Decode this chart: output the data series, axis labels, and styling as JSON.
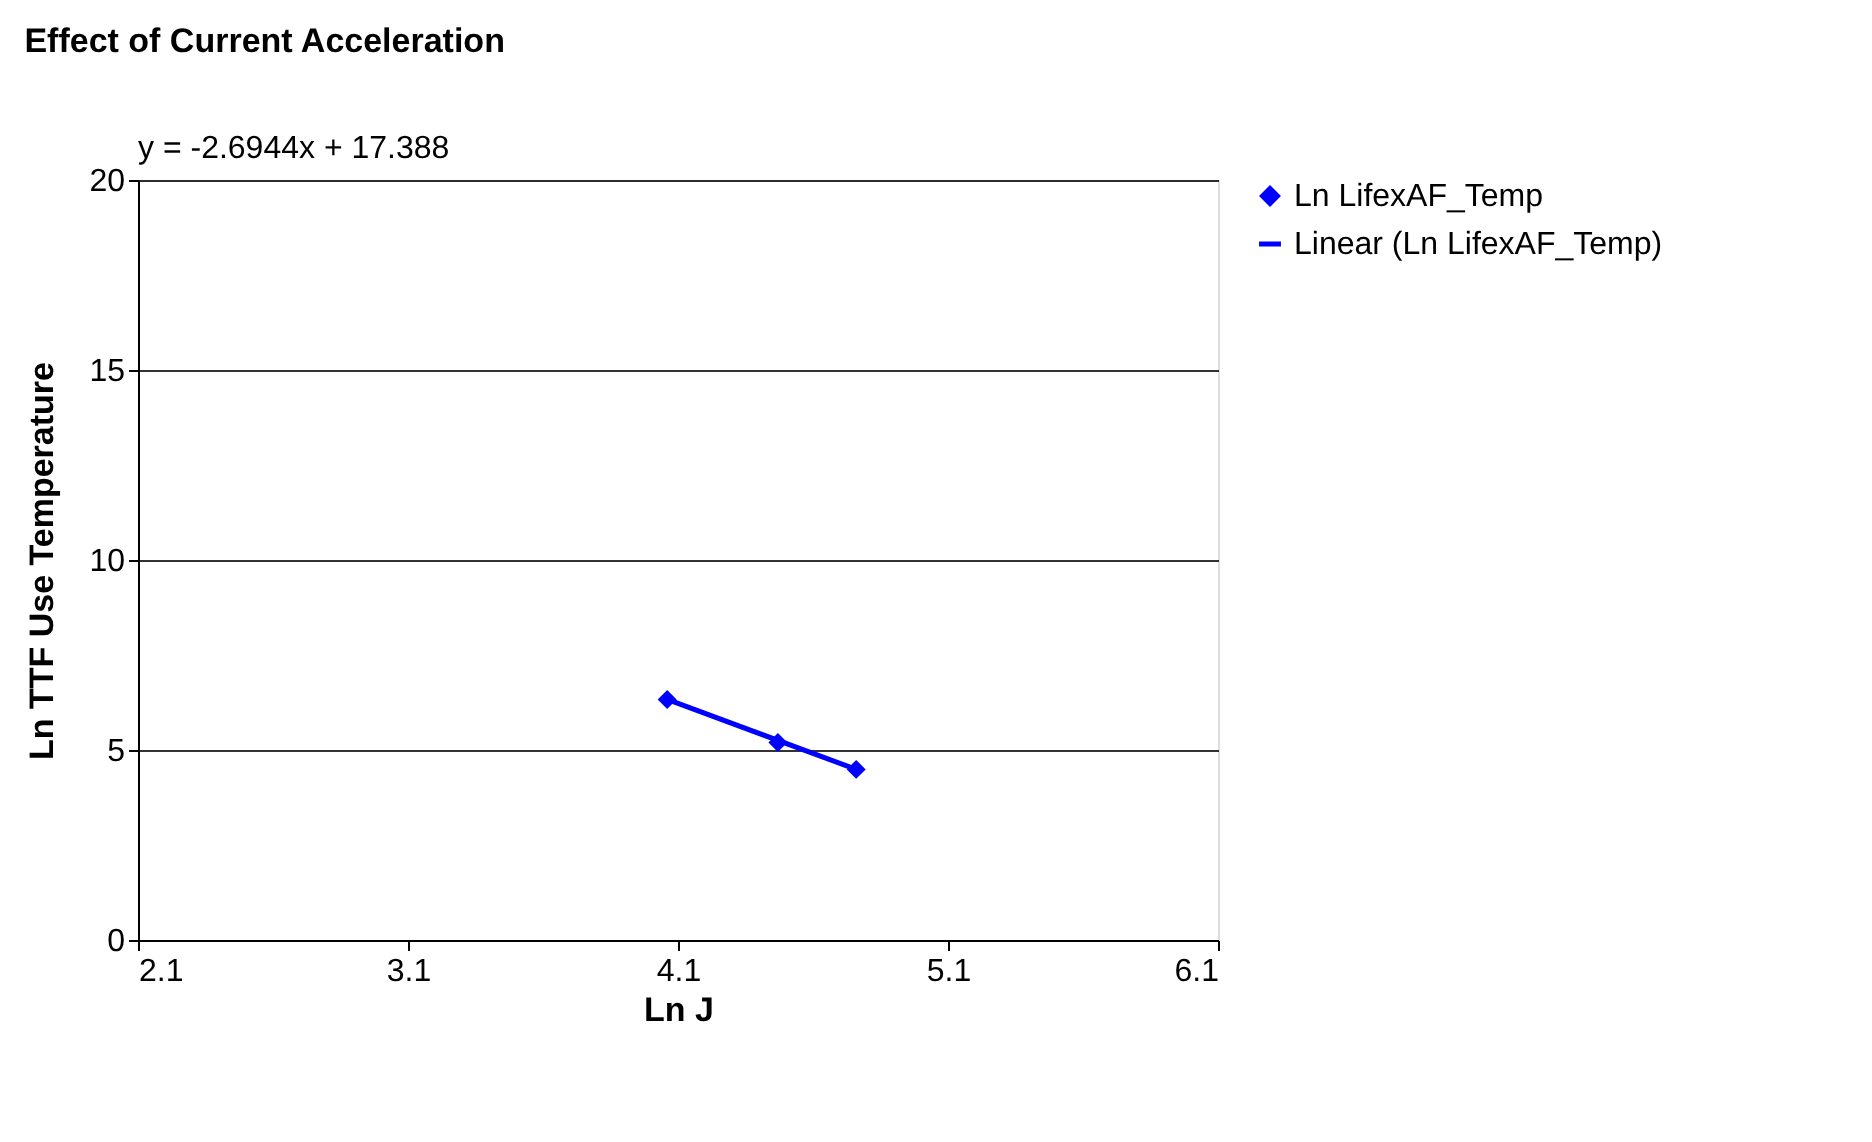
{
  "chart_data": {
    "type": "scatter",
    "title": "Effect of Current Acceleration",
    "xlabel": "Ln J",
    "ylabel": "Ln TTF Use Temperature",
    "x": [
      4.06,
      4.47,
      4.76
    ],
    "series": [
      {
        "name": "Ln LifexAF_Temp",
        "color": "#0000ff",
        "values": [
          6.33,
          5.2,
          4.49
        ],
        "marker": "diamond"
      },
      {
        "name": "Linear (Ln LifexAF_Temp)",
        "type": "line",
        "color": "#0000ff",
        "x": [
          4.06,
          4.76
        ],
        "values": [
          6.33,
          4.49
        ],
        "marker": "none",
        "line_style": "solid"
      }
    ],
    "xlim": [
      2.1,
      6.1
    ],
    "xticks": [
      2.1,
      3.1,
      4.1,
      5.1,
      6.1
    ],
    "ylim": [
      0,
      20
    ],
    "yticks": [
      0,
      5,
      10,
      15,
      20
    ],
    "grid": "y",
    "legend": "top right",
    "annotations": [
      "y = -2.6944x + 17.388"
    ]
  }
}
